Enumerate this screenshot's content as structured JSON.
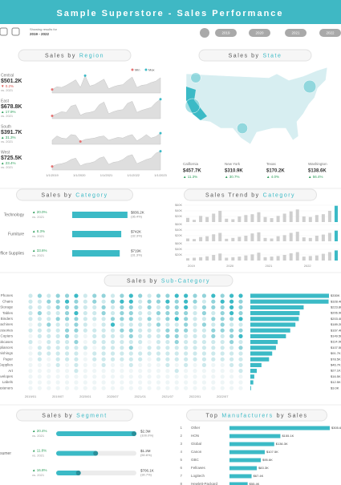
{
  "header": {
    "title": "Sample Superstore - Sales Performance"
  },
  "filters": {
    "caption": "Showing results for",
    "range": "2019 - 2022",
    "years": [
      "2019",
      "2020",
      "2021",
      "2022"
    ]
  },
  "chart_data": [
    {
      "type": "area-multiples",
      "title": {
        "lead": "Sales by",
        "key": "Region"
      },
      "legend": [
        {
          "name": "Min",
          "color": "#e57373"
        },
        {
          "name": "Max",
          "color": "#3bbac6"
        }
      ],
      "color": "#dedede",
      "ylim": [
        0,
        30
      ],
      "xtick_labels": [
        "1/1/2019",
        "1/1/2020",
        "1/1/2021",
        "1/1/2022",
        "1/1/2023"
      ],
      "series": [
        {
          "name": "Central",
          "total": "$501.2K",
          "change": "▼ 0.2%",
          "compare": "vs. 2021",
          "values": [
            5,
            9,
            8,
            11,
            15,
            19,
            8,
            25,
            10,
            12,
            16,
            20,
            6,
            9,
            11,
            12,
            18,
            23,
            8,
            11,
            12,
            15,
            17,
            22
          ]
        },
        {
          "name": "East",
          "total": "$678.8K",
          "change": "▲ 17.9%",
          "compare": "vs. 2021",
          "values": [
            4,
            7,
            10,
            9,
            18,
            20,
            5,
            8,
            9,
            11,
            20,
            24,
            7,
            10,
            12,
            13,
            22,
            25,
            9,
            12,
            14,
            16,
            23,
            28
          ]
        },
        {
          "name": "South",
          "total": "$391.7K",
          "change": "▲ 31.3%",
          "compare": "vs. 2021",
          "values": [
            6,
            12,
            9,
            8,
            14,
            13,
            4,
            7,
            8,
            9,
            11,
            12,
            6,
            8,
            10,
            9,
            12,
            14,
            5,
            9,
            14,
            9,
            11,
            16
          ]
        },
        {
          "name": "West",
          "total": "$725.5K",
          "change": "▲ 23.4%",
          "compare": "vs. 2021",
          "values": [
            5,
            8,
            9,
            11,
            15,
            17,
            6,
            9,
            10,
            12,
            17,
            19,
            8,
            11,
            12,
            15,
            20,
            22,
            9,
            12,
            15,
            17,
            24,
            27
          ]
        }
      ]
    },
    {
      "type": "map",
      "title": {
        "lead": "Sales by",
        "key": "State"
      },
      "color": "#3bbac6",
      "states": [
        {
          "name": "California",
          "total": "$457.7K",
          "change": "▲ 11.3%",
          "value": 457.7
        },
        {
          "name": "New York",
          "total": "$310.9K",
          "change": "▲ 30.7%",
          "value": 310.9
        },
        {
          "name": "Texas",
          "total": "$170.2K",
          "change": "▲ 4.0%",
          "value": 170.2
        },
        {
          "name": "Washington",
          "total": "$138.6K",
          "change": "▲ 56.4%",
          "value": 138.6
        }
      ]
    },
    {
      "type": "hbar",
      "title": {
        "lead": "Sales by",
        "key": "Category"
      },
      "color": "#3bbac6",
      "categories": [
        "Technology",
        "Furniture",
        "Office Supplies"
      ],
      "changes": [
        "▲ 20.0%",
        "▲ 8.3%",
        "▲ 33.6%"
      ],
      "compare": "vs. 2021",
      "values": [
        836.2,
        742,
        719
      ],
      "value_labels": [
        "$836.2K",
        "$742K",
        "$719K"
      ],
      "shares": [
        "(36.4%)",
        "(32.3%)",
        "(31.3%)"
      ],
      "xlim": [
        0,
        850
      ]
    },
    {
      "type": "bar-multiples",
      "title": {
        "lead": "Sales Trend by",
        "key": "Category"
      },
      "color": "#cfcfcf",
      "highlight_color": "#3bbac6",
      "ylim": [
        0,
        60
      ],
      "yticks": [
        {
          "value": 20,
          "label": "$20K"
        },
        {
          "value": 40,
          "label": "$40K"
        },
        {
          "value": 60,
          "label": "$60K"
        }
      ],
      "xtick_labels": [
        "2019",
        "2020",
        "2021",
        "2022"
      ],
      "series": [
        {
          "values": [
            15,
            8,
            22,
            18,
            30,
            40,
            12,
            10,
            20,
            25,
            28,
            35,
            18,
            14,
            22,
            30,
            38,
            45,
            20,
            18,
            25,
            28,
            40,
            58
          ]
        },
        {
          "values": [
            10,
            8,
            15,
            18,
            25,
            30,
            9,
            12,
            16,
            20,
            28,
            32,
            12,
            10,
            18,
            22,
            30,
            34,
            14,
            12,
            20,
            24,
            30,
            38
          ]
        },
        {
          "values": [
            8,
            10,
            12,
            15,
            20,
            25,
            10,
            12,
            14,
            18,
            22,
            28,
            12,
            14,
            16,
            20,
            26,
            30,
            14,
            16,
            18,
            24,
            30,
            36
          ]
        }
      ]
    },
    {
      "type": "dot-matrix",
      "title": {
        "lead": "Sales by",
        "key": "Sub-Category"
      },
      "color": "#3bbac6",
      "level_colors": [
        "#eef5f6",
        "#cde9ec",
        "#92d3da",
        "#3bbac6"
      ],
      "categories": [
        "Phones",
        "Chairs",
        "Storage",
        "Tables",
        "Binders",
        "Machines",
        "Accessories",
        "Copiers",
        "Bookcases",
        "Appliances",
        "Furnishings",
        "Paper",
        "Supplies",
        "Art",
        "Envelopes",
        "Labels",
        "Fasteners"
      ],
      "xtick_labels": [
        "2019/01",
        "2019/07",
        "2020/01",
        "2020/07",
        "2021/01",
        "2021/07",
        "2022/01",
        "2022/07"
      ],
      "matrix": [
        [
          1,
          2,
          1,
          2,
          2,
          3,
          1,
          2,
          2,
          1,
          2,
          3,
          2,
          1,
          2,
          2,
          3,
          3,
          2,
          2,
          3,
          2,
          3,
          3
        ],
        [
          1,
          1,
          2,
          2,
          3,
          2,
          1,
          2,
          1,
          2,
          3,
          3,
          1,
          2,
          2,
          3,
          2,
          3,
          2,
          1,
          2,
          3,
          3,
          2
        ],
        [
          1,
          1,
          1,
          2,
          2,
          2,
          1,
          1,
          2,
          1,
          2,
          2,
          1,
          2,
          1,
          2,
          2,
          3,
          1,
          2,
          2,
          2,
          3,
          2
        ],
        [
          1,
          2,
          1,
          1,
          2,
          3,
          1,
          1,
          2,
          1,
          2,
          2,
          1,
          1,
          2,
          2,
          2,
          2,
          1,
          2,
          1,
          2,
          3,
          2
        ],
        [
          1,
          1,
          1,
          2,
          2,
          2,
          1,
          1,
          1,
          2,
          2,
          2,
          1,
          2,
          1,
          2,
          3,
          2,
          1,
          1,
          2,
          2,
          2,
          3
        ],
        [
          0,
          1,
          2,
          1,
          1,
          2,
          1,
          0,
          1,
          3,
          1,
          1,
          1,
          1,
          2,
          1,
          1,
          2,
          1,
          2,
          1,
          2,
          1,
          1
        ],
        [
          1,
          1,
          1,
          1,
          2,
          2,
          1,
          1,
          1,
          1,
          2,
          2,
          1,
          1,
          1,
          2,
          2,
          2,
          1,
          1,
          2,
          2,
          2,
          2
        ],
        [
          0,
          1,
          1,
          1,
          2,
          1,
          0,
          1,
          1,
          1,
          1,
          2,
          1,
          1,
          1,
          2,
          2,
          1,
          1,
          1,
          2,
          1,
          2,
          3
        ],
        [
          1,
          0,
          1,
          1,
          1,
          2,
          0,
          1,
          1,
          1,
          1,
          1,
          1,
          0,
          1,
          1,
          2,
          1,
          1,
          1,
          1,
          1,
          2,
          1
        ],
        [
          0,
          1,
          1,
          1,
          1,
          1,
          1,
          0,
          1,
          1,
          1,
          2,
          0,
          1,
          1,
          1,
          1,
          1,
          1,
          1,
          1,
          1,
          1,
          2
        ],
        [
          0,
          1,
          1,
          1,
          1,
          1,
          0,
          1,
          1,
          1,
          1,
          1,
          1,
          1,
          1,
          1,
          1,
          1,
          1,
          1,
          1,
          1,
          1,
          1
        ],
        [
          0,
          1,
          0,
          1,
          1,
          1,
          0,
          1,
          1,
          1,
          1,
          1,
          1,
          0,
          1,
          1,
          1,
          1,
          1,
          1,
          1,
          1,
          1,
          1
        ],
        [
          0,
          0,
          0,
          1,
          0,
          1,
          0,
          0,
          1,
          0,
          0,
          1,
          0,
          0,
          0,
          1,
          0,
          1,
          0,
          1,
          0,
          0,
          1,
          1
        ],
        [
          0,
          0,
          0,
          0,
          0,
          1,
          0,
          0,
          0,
          0,
          0,
          0,
          0,
          0,
          0,
          0,
          1,
          0,
          0,
          0,
          0,
          0,
          0,
          1
        ],
        [
          0,
          0,
          0,
          0,
          0,
          0,
          0,
          0,
          0,
          0,
          0,
          0,
          0,
          0,
          0,
          0,
          0,
          0,
          0,
          0,
          0,
          0,
          0,
          0
        ],
        [
          0,
          0,
          0,
          0,
          0,
          0,
          0,
          0,
          0,
          0,
          0,
          0,
          0,
          0,
          0,
          0,
          0,
          0,
          0,
          0,
          0,
          0,
          0,
          0
        ],
        [
          0,
          0,
          0,
          0,
          0,
          0,
          0,
          0,
          0,
          0,
          0,
          0,
          0,
          0,
          0,
          0,
          0,
          0,
          0,
          0,
          0,
          0,
          0,
          0
        ]
      ],
      "values": [
        330,
        328.4,
        223.8,
        206.9,
        203.4,
        189.2,
        167.4,
        149.5,
        114.9,
        107.5,
        91.7,
        78.5,
        46.7,
        27.1,
        16.5,
        12.5,
        3.0
      ],
      "value_labels": [
        "$330K",
        "$328.4K",
        "$223.8K",
        "$206.9K",
        "$203.4K",
        "$189.2K",
        "$167.4K",
        "$149.5K",
        "$114.9K",
        "$107.5K",
        "$91.7K",
        "$78.5K",
        "$46.7K",
        "$27.1K",
        "$16.5K",
        "$12.5K",
        "$3.0K"
      ],
      "xlim": [
        0,
        330
      ]
    },
    {
      "type": "segment",
      "title": {
        "lead": "Sales by",
        "key": "Segment"
      },
      "color": "#3bbac6",
      "categories": [
        null,
        "Consumer",
        null
      ],
      "changes": [
        "▲ 20.4%",
        "▲ 11.8%",
        "▲ 16.8%"
      ],
      "compare": "vs. 2021",
      "values": [
        2300,
        1200,
        706.1
      ],
      "value_labels": [
        "$2.3M",
        "$1.2M",
        "$706.1K"
      ],
      "shares": [
        "(100.0%)",
        "(50.6%)",
        "(30.7%)"
      ],
      "xlim": [
        0,
        2300
      ]
    },
    {
      "type": "rank-bar",
      "title": {
        "lead": "Top",
        "key": "Manufacturers",
        "tail": "by Sales"
      },
      "color": "#3bbac6",
      "ranks": [
        1,
        2,
        3,
        4,
        5,
        6,
        7,
        8
      ],
      "categories": [
        "Other",
        "HON",
        "Global",
        "Canon",
        "GBC",
        "Fellowes",
        "Logitech",
        "Hewlett-Packard"
      ],
      "values": [
        305.6,
        155.1,
        136.3,
        107.5,
        95.6,
        83.3,
        67.4,
        55.4
      ],
      "value_labels": [
        "$305.6K",
        "$155.1K",
        "$136.3K",
        "$107.5K",
        "$95.6K",
        "$83.3K",
        "$67.4K",
        "$55.4K"
      ],
      "xlim": [
        0,
        305.6
      ]
    }
  ]
}
